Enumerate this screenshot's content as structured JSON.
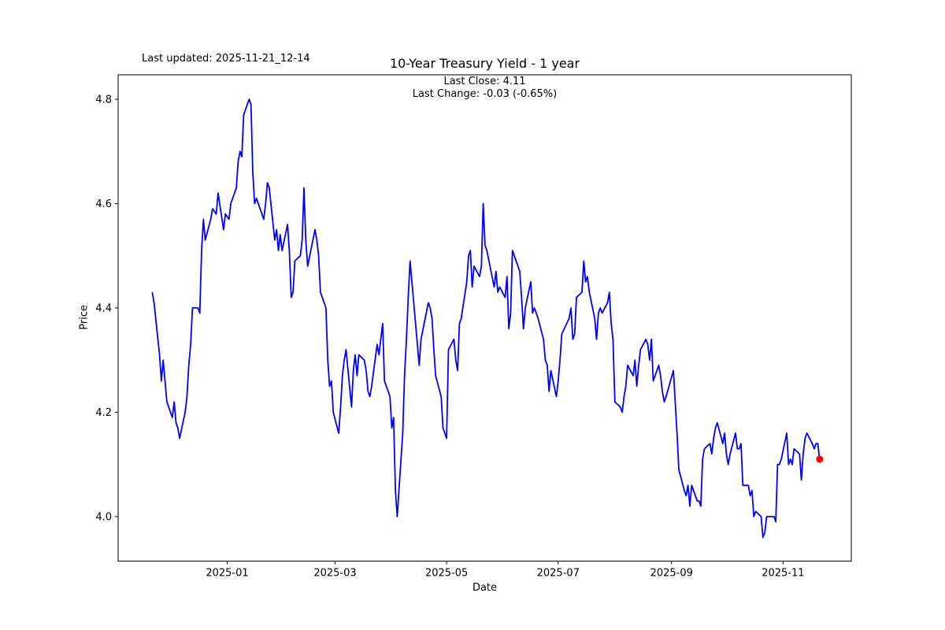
{
  "header": {
    "last_updated": "Last updated: 2025-11-21_12-14",
    "title": "10-Year Treasury Yield - 1 year",
    "subtitle_line1": "Last Close: 4.11",
    "subtitle_line2": "Last Change: -0.03 (-0.65%)"
  },
  "chart_data": {
    "type": "line",
    "title": "10-Year Treasury Yield - 1 year",
    "xlabel": "Date",
    "ylabel": "Price",
    "grid": false,
    "legend": null,
    "line_color": "#0000ff",
    "marker_color": "#ff0000",
    "axis_color": "#000000",
    "last_close": 4.11,
    "last_change": -0.03,
    "last_change_pct": "-0.65%",
    "ylim": [
      3.915,
      4.847
    ],
    "y_ticks": [
      4.0,
      4.2,
      4.4,
      4.6,
      4.8
    ],
    "y_tick_labels": [
      "4.0",
      "4.2",
      "4.4",
      "4.6",
      "4.8"
    ],
    "x_ticks_dates": [
      "2025-01-01",
      "2025-03-01",
      "2025-05-01",
      "2025-07-01",
      "2025-09-01",
      "2025-11-01"
    ],
    "x_tick_labels": [
      "2025-01",
      "2025-03",
      "2025-05",
      "2025-07",
      "2025-09",
      "2025-11"
    ],
    "series": [
      {
        "name": "10-Year Treasury Yield",
        "points": [
          [
            "2024-11-21",
            4.43
          ],
          [
            "2024-11-22",
            4.41
          ],
          [
            "2024-11-25",
            4.31
          ],
          [
            "2024-11-26",
            4.26
          ],
          [
            "2024-11-27",
            4.3
          ],
          [
            "2024-11-29",
            4.22
          ],
          [
            "2024-12-02",
            4.19
          ],
          [
            "2024-12-03",
            4.22
          ],
          [
            "2024-12-04",
            4.18
          ],
          [
            "2024-12-05",
            4.17
          ],
          [
            "2024-12-06",
            4.15
          ],
          [
            "2024-12-09",
            4.2
          ],
          [
            "2024-12-10",
            4.23
          ],
          [
            "2024-12-11",
            4.29
          ],
          [
            "2024-12-12",
            4.33
          ],
          [
            "2024-12-13",
            4.4
          ],
          [
            "2024-12-16",
            4.4
          ],
          [
            "2024-12-17",
            4.39
          ],
          [
            "2024-12-18",
            4.51
          ],
          [
            "2024-12-19",
            4.57
          ],
          [
            "2024-12-20",
            4.53
          ],
          [
            "2024-12-23",
            4.57
          ],
          [
            "2024-12-24",
            4.59
          ],
          [
            "2024-12-26",
            4.58
          ],
          [
            "2024-12-27",
            4.62
          ],
          [
            "2024-12-30",
            4.55
          ],
          [
            "2024-12-31",
            4.58
          ],
          [
            "2025-01-02",
            4.57
          ],
          [
            "2025-01-03",
            4.6
          ],
          [
            "2025-01-06",
            4.63
          ],
          [
            "2025-01-07",
            4.68
          ],
          [
            "2025-01-08",
            4.7
          ],
          [
            "2025-01-09",
            4.69
          ],
          [
            "2025-01-10",
            4.77
          ],
          [
            "2025-01-13",
            4.8
          ],
          [
            "2025-01-14",
            4.79
          ],
          [
            "2025-01-15",
            4.66
          ],
          [
            "2025-01-16",
            4.6
          ],
          [
            "2025-01-17",
            4.61
          ],
          [
            "2025-01-21",
            4.57
          ],
          [
            "2025-01-22",
            4.6
          ],
          [
            "2025-01-23",
            4.64
          ],
          [
            "2025-01-24",
            4.63
          ],
          [
            "2025-01-27",
            4.53
          ],
          [
            "2025-01-28",
            4.55
          ],
          [
            "2025-01-29",
            4.51
          ],
          [
            "2025-01-30",
            4.54
          ],
          [
            "2025-01-31",
            4.51
          ],
          [
            "2025-02-03",
            4.56
          ],
          [
            "2025-02-04",
            4.51
          ],
          [
            "2025-02-05",
            4.42
          ],
          [
            "2025-02-06",
            4.43
          ],
          [
            "2025-02-07",
            4.49
          ],
          [
            "2025-02-10",
            4.5
          ],
          [
            "2025-02-11",
            4.53
          ],
          [
            "2025-02-12",
            4.63
          ],
          [
            "2025-02-13",
            4.53
          ],
          [
            "2025-02-14",
            4.48
          ],
          [
            "2025-02-18",
            4.55
          ],
          [
            "2025-02-19",
            4.53
          ],
          [
            "2025-02-20",
            4.5
          ],
          [
            "2025-02-21",
            4.43
          ],
          [
            "2025-02-24",
            4.4
          ],
          [
            "2025-02-25",
            4.3
          ],
          [
            "2025-02-26",
            4.25
          ],
          [
            "2025-02-27",
            4.26
          ],
          [
            "2025-02-28",
            4.2
          ],
          [
            "2025-03-03",
            4.16
          ],
          [
            "2025-03-04",
            4.21
          ],
          [
            "2025-03-05",
            4.27
          ],
          [
            "2025-03-06",
            4.3
          ],
          [
            "2025-03-07",
            4.32
          ],
          [
            "2025-03-10",
            4.21
          ],
          [
            "2025-03-11",
            4.28
          ],
          [
            "2025-03-12",
            4.31
          ],
          [
            "2025-03-13",
            4.27
          ],
          [
            "2025-03-14",
            4.31
          ],
          [
            "2025-03-17",
            4.3
          ],
          [
            "2025-03-18",
            4.28
          ],
          [
            "2025-03-19",
            4.24
          ],
          [
            "2025-03-20",
            4.23
          ],
          [
            "2025-03-21",
            4.25
          ],
          [
            "2025-03-24",
            4.33
          ],
          [
            "2025-03-25",
            4.31
          ],
          [
            "2025-03-26",
            4.34
          ],
          [
            "2025-03-27",
            4.37
          ],
          [
            "2025-03-28",
            4.26
          ],
          [
            "2025-03-31",
            4.23
          ],
          [
            "2025-04-01",
            4.17
          ],
          [
            "2025-04-02",
            4.19
          ],
          [
            "2025-04-03",
            4.05
          ],
          [
            "2025-04-04",
            4.0
          ],
          [
            "2025-04-07",
            4.16
          ],
          [
            "2025-04-08",
            4.27
          ],
          [
            "2025-04-09",
            4.34
          ],
          [
            "2025-04-10",
            4.42
          ],
          [
            "2025-04-11",
            4.49
          ],
          [
            "2025-04-14",
            4.37
          ],
          [
            "2025-04-15",
            4.33
          ],
          [
            "2025-04-16",
            4.29
          ],
          [
            "2025-04-17",
            4.34
          ],
          [
            "2025-04-21",
            4.41
          ],
          [
            "2025-04-22",
            4.4
          ],
          [
            "2025-04-23",
            4.38
          ],
          [
            "2025-04-24",
            4.32
          ],
          [
            "2025-04-25",
            4.27
          ],
          [
            "2025-04-28",
            4.23
          ],
          [
            "2025-04-29",
            4.17
          ],
          [
            "2025-04-30",
            4.16
          ],
          [
            "2025-05-01",
            4.15
          ],
          [
            "2025-05-02",
            4.32
          ],
          [
            "2025-05-05",
            4.34
          ],
          [
            "2025-05-06",
            4.3
          ],
          [
            "2025-05-07",
            4.28
          ],
          [
            "2025-05-08",
            4.37
          ],
          [
            "2025-05-09",
            4.38
          ],
          [
            "2025-05-12",
            4.45
          ],
          [
            "2025-05-13",
            4.5
          ],
          [
            "2025-05-14",
            4.51
          ],
          [
            "2025-05-15",
            4.44
          ],
          [
            "2025-05-16",
            4.48
          ],
          [
            "2025-05-19",
            4.46
          ],
          [
            "2025-05-20",
            4.48
          ],
          [
            "2025-05-21",
            4.6
          ],
          [
            "2025-05-22",
            4.52
          ],
          [
            "2025-05-23",
            4.51
          ],
          [
            "2025-05-27",
            4.44
          ],
          [
            "2025-05-28",
            4.47
          ],
          [
            "2025-05-29",
            4.43
          ],
          [
            "2025-05-30",
            4.44
          ],
          [
            "2025-06-02",
            4.42
          ],
          [
            "2025-06-03",
            4.46
          ],
          [
            "2025-06-04",
            4.36
          ],
          [
            "2025-06-05",
            4.39
          ],
          [
            "2025-06-06",
            4.51
          ],
          [
            "2025-06-09",
            4.48
          ],
          [
            "2025-06-10",
            4.47
          ],
          [
            "2025-06-11",
            4.42
          ],
          [
            "2025-06-12",
            4.36
          ],
          [
            "2025-06-13",
            4.4
          ],
          [
            "2025-06-16",
            4.45
          ],
          [
            "2025-06-17",
            4.39
          ],
          [
            "2025-06-18",
            4.4
          ],
          [
            "2025-06-20",
            4.38
          ],
          [
            "2025-06-23",
            4.34
          ],
          [
            "2025-06-24",
            4.3
          ],
          [
            "2025-06-25",
            4.29
          ],
          [
            "2025-06-26",
            4.24
          ],
          [
            "2025-06-27",
            4.28
          ],
          [
            "2025-06-30",
            4.23
          ],
          [
            "2025-07-01",
            4.26
          ],
          [
            "2025-07-02",
            4.3
          ],
          [
            "2025-07-03",
            4.35
          ],
          [
            "2025-07-07",
            4.38
          ],
          [
            "2025-07-08",
            4.4
          ],
          [
            "2025-07-09",
            4.34
          ],
          [
            "2025-07-10",
            4.35
          ],
          [
            "2025-07-11",
            4.42
          ],
          [
            "2025-07-14",
            4.43
          ],
          [
            "2025-07-15",
            4.49
          ],
          [
            "2025-07-16",
            4.45
          ],
          [
            "2025-07-17",
            4.46
          ],
          [
            "2025-07-18",
            4.43
          ],
          [
            "2025-07-21",
            4.38
          ],
          [
            "2025-07-22",
            4.34
          ],
          [
            "2025-07-23",
            4.39
          ],
          [
            "2025-07-24",
            4.4
          ],
          [
            "2025-07-25",
            4.39
          ],
          [
            "2025-07-28",
            4.41
          ],
          [
            "2025-07-29",
            4.43
          ],
          [
            "2025-07-30",
            4.37
          ],
          [
            "2025-07-31",
            4.34
          ],
          [
            "2025-08-01",
            4.22
          ],
          [
            "2025-08-04",
            4.21
          ],
          [
            "2025-08-05",
            4.2
          ],
          [
            "2025-08-06",
            4.23
          ],
          [
            "2025-08-07",
            4.25
          ],
          [
            "2025-08-08",
            4.29
          ],
          [
            "2025-08-11",
            4.27
          ],
          [
            "2025-08-12",
            4.3
          ],
          [
            "2025-08-13",
            4.25
          ],
          [
            "2025-08-14",
            4.29
          ],
          [
            "2025-08-15",
            4.32
          ],
          [
            "2025-08-18",
            4.34
          ],
          [
            "2025-08-19",
            4.33
          ],
          [
            "2025-08-20",
            4.3
          ],
          [
            "2025-08-21",
            4.34
          ],
          [
            "2025-08-22",
            4.26
          ],
          [
            "2025-08-25",
            4.29
          ],
          [
            "2025-08-26",
            4.27
          ],
          [
            "2025-08-27",
            4.24
          ],
          [
            "2025-08-28",
            4.22
          ],
          [
            "2025-08-29",
            4.23
          ],
          [
            "2025-09-02",
            4.28
          ],
          [
            "2025-09-03",
            4.22
          ],
          [
            "2025-09-04",
            4.16
          ],
          [
            "2025-09-05",
            4.09
          ],
          [
            "2025-09-08",
            4.05
          ],
          [
            "2025-09-09",
            4.04
          ],
          [
            "2025-09-10",
            4.06
          ],
          [
            "2025-09-11",
            4.02
          ],
          [
            "2025-09-12",
            4.06
          ],
          [
            "2025-09-15",
            4.03
          ],
          [
            "2025-09-16",
            4.03
          ],
          [
            "2025-09-17",
            4.02
          ],
          [
            "2025-09-18",
            4.11
          ],
          [
            "2025-09-19",
            4.13
          ],
          [
            "2025-09-22",
            4.14
          ],
          [
            "2025-09-23",
            4.12
          ],
          [
            "2025-09-24",
            4.15
          ],
          [
            "2025-09-25",
            4.17
          ],
          [
            "2025-09-26",
            4.18
          ],
          [
            "2025-09-29",
            4.14
          ],
          [
            "2025-09-30",
            4.16
          ],
          [
            "2025-10-01",
            4.12
          ],
          [
            "2025-10-02",
            4.1
          ],
          [
            "2025-10-03",
            4.12
          ],
          [
            "2025-10-06",
            4.16
          ],
          [
            "2025-10-07",
            4.13
          ],
          [
            "2025-10-08",
            4.13
          ],
          [
            "2025-10-09",
            4.14
          ],
          [
            "2025-10-10",
            4.06
          ],
          [
            "2025-10-13",
            4.06
          ],
          [
            "2025-10-14",
            4.04
          ],
          [
            "2025-10-15",
            4.05
          ],
          [
            "2025-10-16",
            4.0
          ],
          [
            "2025-10-17",
            4.01
          ],
          [
            "2025-10-20",
            4.0
          ],
          [
            "2025-10-21",
            3.96
          ],
          [
            "2025-10-22",
            3.97
          ],
          [
            "2025-10-23",
            4.0
          ],
          [
            "2025-10-24",
            4.0
          ],
          [
            "2025-10-27",
            4.0
          ],
          [
            "2025-10-28",
            3.99
          ],
          [
            "2025-10-29",
            4.1
          ],
          [
            "2025-10-30",
            4.1
          ],
          [
            "2025-10-31",
            4.11
          ],
          [
            "2025-11-03",
            4.16
          ],
          [
            "2025-11-04",
            4.1
          ],
          [
            "2025-11-05",
            4.11
          ],
          [
            "2025-11-06",
            4.1
          ],
          [
            "2025-11-07",
            4.13
          ],
          [
            "2025-11-10",
            4.12
          ],
          [
            "2025-11-11",
            4.07
          ],
          [
            "2025-11-12",
            4.12
          ],
          [
            "2025-11-13",
            4.15
          ],
          [
            "2025-11-14",
            4.16
          ],
          [
            "2025-11-17",
            4.14
          ],
          [
            "2025-11-18",
            4.13
          ],
          [
            "2025-11-19",
            4.14
          ],
          [
            "2025-11-20",
            4.14
          ],
          [
            "2025-11-21",
            4.11
          ]
        ]
      }
    ]
  }
}
